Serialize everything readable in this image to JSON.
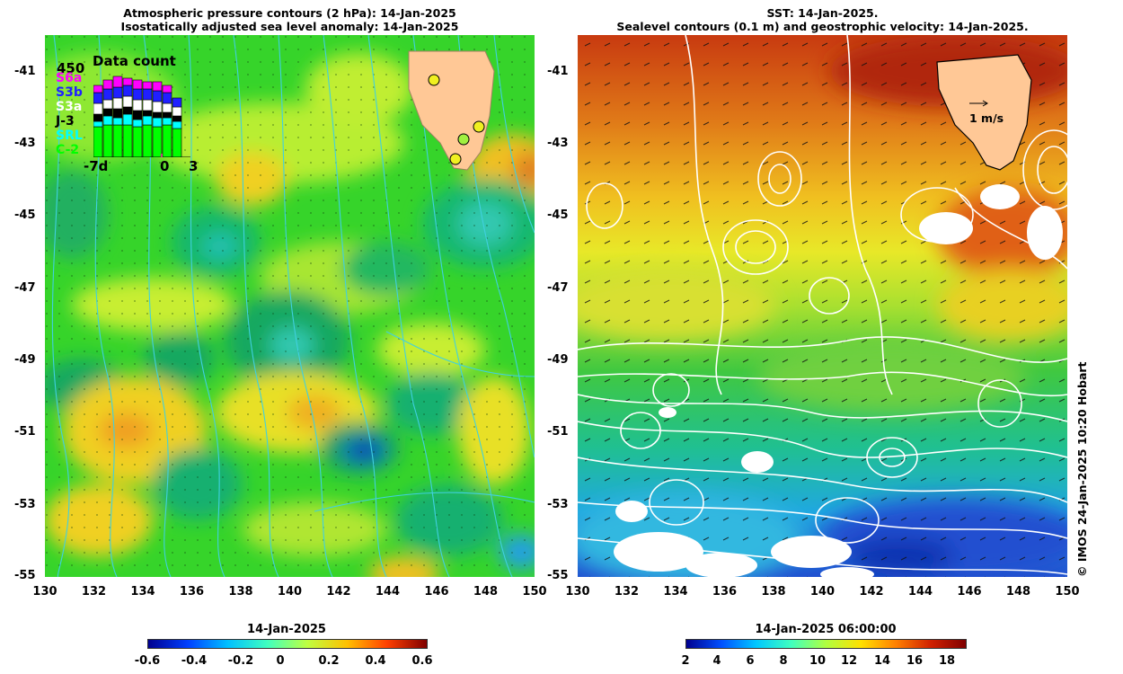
{
  "left_panel": {
    "title_line1": "Atmospheric pressure contours (2 hPa): 14-Jan-2025",
    "title_line2": "Isostatically adjusted sea level anomaly: 14-Jan-2025",
    "colorbar": {
      "title": "14-Jan-2025",
      "tick_labels": [
        "-0.6",
        "-0.4",
        "-0.2",
        "0",
        "0.2",
        "0.4",
        "0.6"
      ],
      "colormap": [
        "#00008f",
        "#0040ff",
        "#00c0ff",
        "#40ffbf",
        "#bfff40",
        "#ffc000",
        "#ff4000",
        "#800000"
      ]
    },
    "inset": {
      "title": "Data count",
      "max_label": "450",
      "missions": [
        {
          "name": "S6a",
          "color": "#ff00ff"
        },
        {
          "name": "S3b",
          "color": "#2020ff"
        },
        {
          "name": "S3a",
          "color": "#ffffff"
        },
        {
          "name": "J-3",
          "color": "#000000"
        },
        {
          "name": "SRL",
          "color": "#00ffff"
        },
        {
          "name": "C-2",
          "color": "#00ff00"
        }
      ],
      "axis_labels": [
        "-7d",
        "0",
        "3"
      ]
    }
  },
  "right_panel": {
    "title_line1": "SST: 14-Jan-2025.",
    "title_line2": "Sealevel contours (0.1 m) and geostrophic velocity: 14-Jan-2025.",
    "velocity_scale_label": "1 m/s",
    "colorbar": {
      "title": "14-Jan-2025 06:00:00",
      "tick_labels": [
        "2",
        "4",
        "6",
        "8",
        "10",
        "12",
        "14",
        "16",
        "18"
      ],
      "colormap": [
        "#00008f",
        "#0050ff",
        "#00c8ff",
        "#40ffbf",
        "#b0ff40",
        "#ffe000",
        "#ff8000",
        "#d02000",
        "#800000"
      ]
    }
  },
  "x_tick_labels": [
    "130",
    "132",
    "134",
    "136",
    "138",
    "140",
    "142",
    "144",
    "146",
    "148",
    "150"
  ],
  "y_tick_labels": [
    "-41",
    "-43",
    "-45",
    "-47",
    "-49",
    "-51",
    "-53",
    "-55"
  ],
  "credit": "© IMOS 24-Jan-2025 10:20 Hobart"
}
